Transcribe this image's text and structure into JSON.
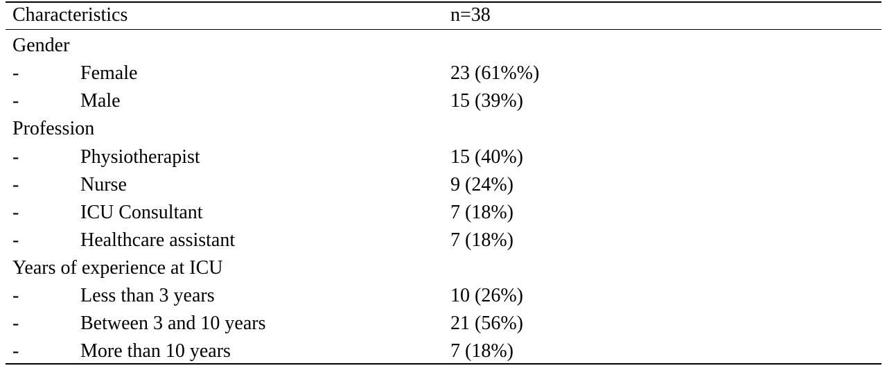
{
  "header": {
    "characteristics": "Characteristics",
    "n": "n=38"
  },
  "groups": [
    {
      "title": "Gender",
      "rows": [
        {
          "dash": "-",
          "label": "Female",
          "value": "23 (61%%)"
        },
        {
          "dash": "-",
          "label": "Male",
          "value": "15 (39%)"
        }
      ]
    },
    {
      "title": "Profession",
      "rows": [
        {
          "dash": "-",
          "label": "Physiotherapist",
          "value": "15 (40%)"
        },
        {
          "dash": "-",
          "label": "Nurse",
          "value": "9 (24%)"
        },
        {
          "dash": "-",
          "label": "ICU Consultant",
          "value": "7 (18%)"
        },
        {
          "dash": "-",
          "label": "Healthcare assistant",
          "value": "7 (18%)"
        }
      ]
    },
    {
      "title": "Years of experience at ICU",
      "rows": [
        {
          "dash": "-",
          "label": "Less than 3 years",
          "value": "10 (26%)"
        },
        {
          "dash": "-",
          "label": "Between 3 and 10 years",
          "value": "21 (56%)"
        },
        {
          "dash": "-",
          "label": "More than 10 years",
          "value": "7 (18%)"
        }
      ]
    }
  ]
}
